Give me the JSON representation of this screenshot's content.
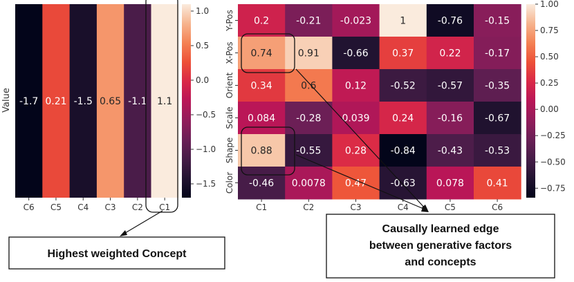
{
  "chart_data": [
    {
      "type": "heatmap",
      "ylabel": "Value",
      "x_tick_labels": [
        "C6",
        "C5",
        "C4",
        "C3",
        "C2",
        "C1"
      ],
      "values": [
        -1.7,
        0.21,
        -1.5,
        0.65,
        -1.1,
        1.1
      ],
      "value_labels": [
        "-1.7",
        "0.21",
        "-1.5",
        "0.65",
        "-1.1",
        "1.1"
      ],
      "colorbar": {
        "min": -1.7,
        "max": 1.1,
        "ticks": [
          "1.0",
          "0.5",
          "0.0",
          "−0.5",
          "−1.0",
          "−1.5"
        ],
        "tick_values": [
          1.0,
          0.5,
          0.0,
          -0.5,
          -1.0,
          -1.5
        ]
      },
      "highlight_column": "C1"
    },
    {
      "type": "heatmap",
      "x_tick_labels": [
        "C1",
        "C2",
        "C3",
        "C4",
        "C5",
        "C6"
      ],
      "y_tick_labels": [
        "Y-Pos",
        "X-Pos",
        "Orient",
        "Scale",
        "Shape",
        "Color"
      ],
      "values": [
        [
          0.2,
          -0.21,
          -0.023,
          1,
          -0.76,
          -0.15
        ],
        [
          0.74,
          0.91,
          -0.66,
          0.37,
          0.22,
          -0.17
        ],
        [
          0.34,
          0.6,
          0.12,
          -0.52,
          -0.57,
          -0.35
        ],
        [
          0.084,
          -0.28,
          0.039,
          0.24,
          -0.16,
          -0.67
        ],
        [
          0.88,
          -0.55,
          0.28,
          -0.84,
          -0.43,
          -0.53
        ],
        [
          -0.46,
          0.0078,
          0.47,
          -0.63,
          0.078,
          0.41
        ]
      ],
      "value_labels": [
        [
          "0.2",
          "-0.21",
          "-0.023",
          "1",
          "-0.76",
          "-0.15"
        ],
        [
          "0.74",
          "0.91",
          "-0.66",
          "0.37",
          "0.22",
          "-0.17"
        ],
        [
          "0.34",
          "0.6",
          "0.12",
          "-0.52",
          "-0.57",
          "-0.35"
        ],
        [
          "0.084",
          "-0.28",
          "0.039",
          "0.24",
          "-0.16",
          "-0.67"
        ],
        [
          "0.88",
          "-0.55",
          "0.28",
          "-0.84",
          "-0.43",
          "-0.53"
        ],
        [
          "-0.46",
          "0.0078",
          "0.47",
          "-0.63",
          "0.078",
          "0.41"
        ]
      ],
      "colorbar": {
        "min": -0.84,
        "max": 1.0,
        "ticks": [
          "1.00",
          "0.75",
          "0.50",
          "0.25",
          "0.00",
          "−0.25",
          "−0.50",
          "−0.75"
        ],
        "tick_values": [
          1.0,
          0.75,
          0.5,
          0.25,
          0.0,
          -0.25,
          -0.5,
          -0.75
        ]
      },
      "highlighted_cells": [
        [
          1,
          0
        ],
        [
          4,
          0
        ]
      ]
    }
  ],
  "annotations": {
    "left_callout": "Highest weighted Concept",
    "right_callout": [
      "Causally learned edge",
      "between generative factors",
      "and concepts"
    ]
  }
}
